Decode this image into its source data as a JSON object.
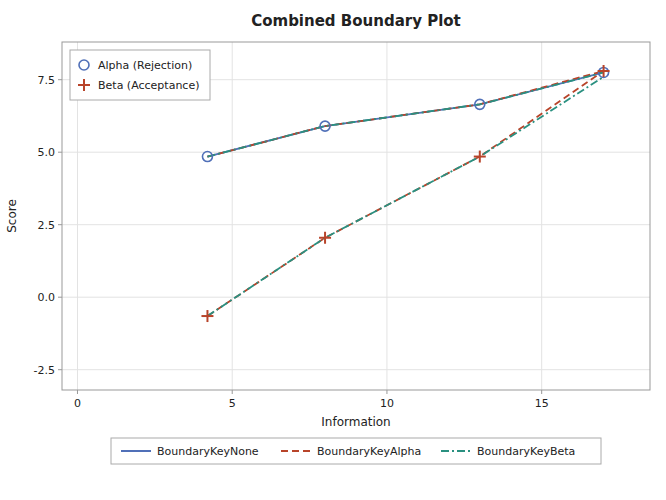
{
  "chart_data": {
    "type": "line",
    "title": "Combined Boundary Plot",
    "xlabel": "Information",
    "ylabel": "Score",
    "xlim": [
      -0.5,
      18.5
    ],
    "ylim": [
      -3.2,
      8.8
    ],
    "xticks": [
      0,
      5,
      10,
      15
    ],
    "yticks": [
      -2.5,
      {
        "value": 0.0,
        "label": "0.0"
      },
      2.5,
      {
        "value": 5.0,
        "label": "5.0"
      },
      7.5
    ],
    "grid": true,
    "x": [
      4.2,
      8.0,
      13.0,
      17.0
    ],
    "series": [
      {
        "name": "BoundaryKeyNone",
        "color": "#5070b8",
        "line_style": "solid",
        "values": [
          4.85,
          5.9,
          6.65,
          7.75
        ]
      },
      {
        "name": "BoundaryKeyAlpha",
        "color": "#b8442a",
        "line_style": "dashed",
        "values": [
          4.85,
          5.9,
          6.65,
          7.8
        ]
      },
      {
        "name": "BoundaryKeyAlpha",
        "color": "#b8442a",
        "line_style": "dashed",
        "values": [
          -0.65,
          2.05,
          4.85,
          7.8
        ]
      },
      {
        "name": "BoundaryKeyBeta",
        "color": "#2a9080",
        "line_style": "dashdot",
        "values": [
          4.85,
          5.9,
          6.65,
          7.75
        ]
      },
      {
        "name": "BoundaryKeyBeta",
        "color": "#2a9080",
        "line_style": "dashdot",
        "values": [
          -0.65,
          2.05,
          4.85,
          7.6
        ]
      },
      {
        "name": "Alpha (Rejection)",
        "type": "scatter",
        "marker": "circle",
        "color": "#5070b8",
        "values": [
          4.85,
          5.9,
          6.65,
          7.75
        ]
      },
      {
        "name": "Beta (Acceptance)",
        "type": "scatter",
        "marker": "plus",
        "color": "#b8442a",
        "values": [
          -0.65,
          2.05,
          4.85,
          7.8
        ]
      }
    ]
  }
}
